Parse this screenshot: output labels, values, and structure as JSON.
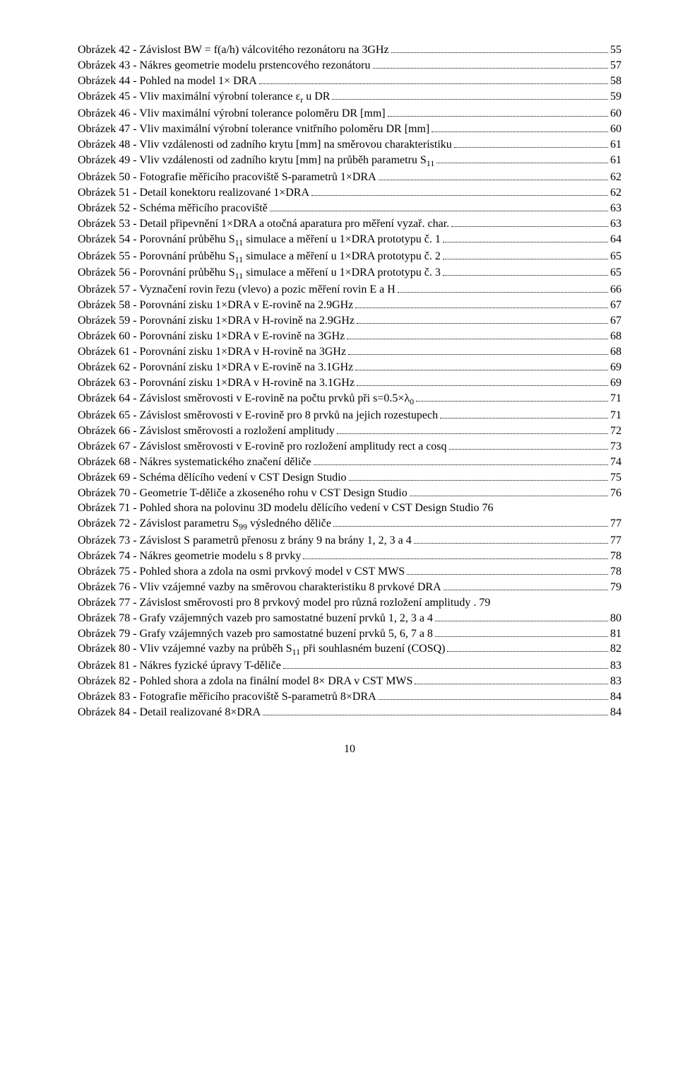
{
  "page_number": "10",
  "entries": [
    {
      "label": "Obrázek 42 - Závislost BW = f(a/h) válcovitého rezonátoru na 3GHz",
      "page": "55"
    },
    {
      "label": "Obrázek 43 - Nákres geometrie modelu prstencového rezonátoru",
      "page": "57"
    },
    {
      "label": "Obrázek 44 - Pohled na model 1× DRA",
      "page": "58"
    },
    {
      "label": "Obrázek 45 - Vliv maximální výrobní tolerance ε<sub>r</sub> u DR",
      "page": "59"
    },
    {
      "label": "Obrázek 46 - Vliv maximální výrobní tolerance poloměru DR [mm]",
      "page": "60"
    },
    {
      "label": "Obrázek 47 - Vliv maximální výrobní tolerance vnitřního poloměru DR [mm]",
      "page": "60"
    },
    {
      "label": "Obrázek 48 - Vliv vzdálenosti od zadního krytu [mm] na směrovou charakteristiku",
      "page": "61"
    },
    {
      "label": "Obrázek 49 - Vliv vzdálenosti od zadního krytu [mm] na průběh parametru S<sub>11</sub>",
      "page": "61"
    },
    {
      "label": "Obrázek 50 - Fotografie měřicího pracoviště S-parametrů 1×DRA",
      "page": "62"
    },
    {
      "label": "Obrázek 51 - Detail konektoru realizované 1×DRA",
      "page": "62"
    },
    {
      "label": "Obrázek 52 - Schéma měřicího pracoviště",
      "page": "63"
    },
    {
      "label": "Obrázek 53 - Detail připevnění 1×DRA a otočná aparatura pro měření vyzař. char.",
      "page": "63"
    },
    {
      "label": "Obrázek 54 - Porovnání průběhu S<sub>11</sub> simulace a měření u 1×DRA prototypu č. 1",
      "page": "64"
    },
    {
      "label": "Obrázek 55 - Porovnání průběhu S<sub>11</sub> simulace a měření u 1×DRA prototypu č. 2",
      "page": "65"
    },
    {
      "label": "Obrázek 56 - Porovnání průběhu S<sub>11</sub> simulace a měření u 1×DRA prototypu č. 3",
      "page": "65"
    },
    {
      "label": "Obrázek 57 - Vyznačení rovin řezu (vlevo) a pozic měření rovin E a H",
      "page": "66"
    },
    {
      "label": "Obrázek 58 - Porovnání zisku 1×DRA v E-rovině na 2.9GHz",
      "page": "67"
    },
    {
      "label": "Obrázek 59 - Porovnání zisku 1×DRA v H-rovině na 2.9GHz",
      "page": "67"
    },
    {
      "label": "Obrázek 60 - Porovnání zisku 1×DRA v E-rovině na 3GHz",
      "page": "68"
    },
    {
      "label": "Obrázek 61 - Porovnání zisku 1×DRA v H-rovině na 3GHz",
      "page": "68"
    },
    {
      "label": "Obrázek 62 - Porovnání zisku 1×DRA v E-rovině na 3.1GHz",
      "page": "69"
    },
    {
      "label": "Obrázek 63 - Porovnání zisku 1×DRA v H-rovině na 3.1GHz",
      "page": "69"
    },
    {
      "label": "Obrázek 64 - Závislost směrovosti v E-rovině na počtu prvků při s=0.5×λ<sub>0</sub>",
      "page": "71"
    },
    {
      "label": "Obrázek 65 - Závislost směrovosti v E-rovině pro 8 prvků na jejich rozestupech",
      "page": "71"
    },
    {
      "label": "Obrázek 66 - Závislost směrovosti a rozložení amplitudy",
      "page": "72"
    },
    {
      "label": "Obrázek 67 - Závislost směrovosti v E-rovině pro rozložení amplitudy rect a cosq",
      "page": "73"
    },
    {
      "label": "Obrázek 68 - Nákres systematického značení děliče",
      "page": "74"
    },
    {
      "label": "Obrázek 69 - Schéma dělícího vedení v CST Design Studio",
      "page": "75"
    },
    {
      "label": "Obrázek 70 - Geometrie T-děliče a zkoseného rohu v CST Design Studio",
      "page": "76"
    },
    {
      "label": "Obrázek 71 - Pohled shora na polovinu 3D modelu dělícího vedení v CST Design Studio",
      "page": "76",
      "nodots": true
    },
    {
      "label": "Obrázek 72 - Závislost parametru S<sub>99</sub> výsledného děliče",
      "page": "77"
    },
    {
      "label": "Obrázek 73 - Závislost S parametrů přenosu z brány 9 na brány 1, 2, 3 a 4",
      "page": "77"
    },
    {
      "label": "Obrázek 74 - Nákres geometrie modelu s 8 prvky",
      "page": "78"
    },
    {
      "label": "Obrázek 75 - Pohled shora a zdola na osmi prvkový model v CST MWS",
      "page": "78"
    },
    {
      "label": "Obrázek 76 - Vliv vzájemné vazby na směrovou charakteristiku 8 prvkové DRA",
      "page": "79"
    },
    {
      "label": "Obrázek 77 - Závislost směrovosti pro 8 prvkový model pro různá rozložení amplitudy .",
      "page": "79",
      "nodots": true
    },
    {
      "label": "Obrázek 78 - Grafy vzájemných vazeb pro samostatné buzení prvků 1, 2, 3 a 4",
      "page": "80"
    },
    {
      "label": "Obrázek 79 - Grafy vzájemných vazeb pro samostatné buzení prvků 5, 6, 7 a 8",
      "page": "81"
    },
    {
      "label": "Obrázek 80 - Vliv vzájemné vazby na průběh S<sub>11</sub> při souhlasném buzení (COSQ)",
      "page": "82"
    },
    {
      "label": "Obrázek 81 - Nákres fyzické úpravy T-děliče",
      "page": "83"
    },
    {
      "label": "Obrázek 82 - Pohled shora a zdola na finální model 8× DRA v CST MWS",
      "page": "83"
    },
    {
      "label": "Obrázek 83 - Fotografie měřicího pracoviště S-parametrů 8×DRA",
      "page": "84"
    },
    {
      "label": "Obrázek 84 - Detail realizované 8×DRA",
      "page": "84"
    }
  ]
}
